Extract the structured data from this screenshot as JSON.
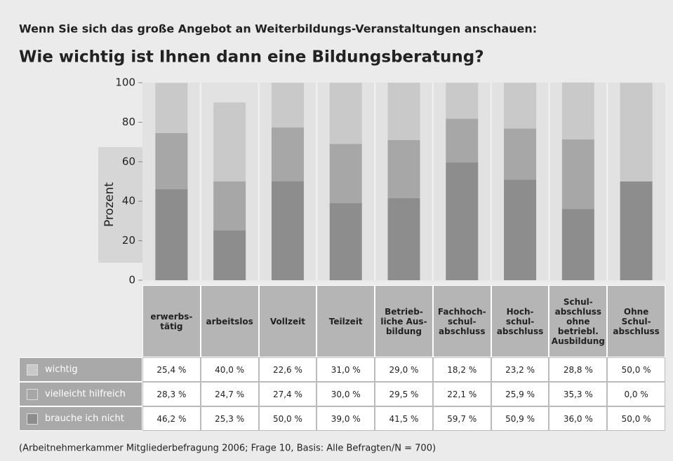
{
  "chart_data": {
    "type": "stacked_bar",
    "title": "Wenn Sie sich das große Angebot an Weiterbildungs-Veranstaltungen anschauen:",
    "subtitle": "Wie wichtig ist Ihnen dann eine Bildungsberatung?",
    "ylabel": "Prozent",
    "source": "(Arbeitnehmerkammer Mitgliederbefragung 2006; Frage 10, Basis: Alle Befragten/N = 700)",
    "categories": [
      "erwerbs-\ntätig",
      "arbeitslos",
      "Vollzeit",
      "Teilzeit",
      "Betrieb-\nliche Aus-\nbildung",
      "Fachhoch-\nschul-\nabschluss",
      "Hoch-\nschul-\nabschluss",
      "Schul-\nabschluss\nohne\nbetriebl.\nAusbildung",
      "Ohne\nSchul-\nabschluss"
    ],
    "series": [
      {
        "name": "wichtig",
        "color": "#c9c9c9",
        "values": [
          25.4,
          40.0,
          22.6,
          31.0,
          29.0,
          18.2,
          23.2,
          28.8,
          50.0
        ],
        "value_labels": [
          "25,4 %",
          "40,0 %",
          "22,6 %",
          "31,0 %",
          "29,0 %",
          "18,2 %",
          "23,2 %",
          "28,8 %",
          "50,0 %"
        ]
      },
      {
        "name": "vielleicht hilfreich",
        "color": "#a7a7a7",
        "values": [
          28.3,
          24.7,
          27.4,
          30.0,
          29.5,
          22.1,
          25.9,
          35.3,
          0.0
        ],
        "value_labels": [
          "28,3 %",
          "24,7 %",
          "27,4 %",
          "30,0 %",
          "29,5 %",
          "22,1 %",
          "25,9 %",
          "35,3 %",
          "0,0 %"
        ]
      },
      {
        "name": "brauche ich nicht",
        "color": "#8d8d8d",
        "values": [
          46.2,
          25.3,
          50.0,
          39.0,
          41.5,
          59.7,
          50.9,
          36.0,
          50.0
        ],
        "value_labels": [
          "46,2 %",
          "25,3 %",
          "50,0 %",
          "39,0 %",
          "41,5 %",
          "59,7 %",
          "50,9 %",
          "36,0 %",
          "50,0 %"
        ]
      }
    ],
    "ylim": [
      0,
      100
    ],
    "yticks": [
      0,
      20,
      40,
      60,
      80,
      100
    ]
  }
}
